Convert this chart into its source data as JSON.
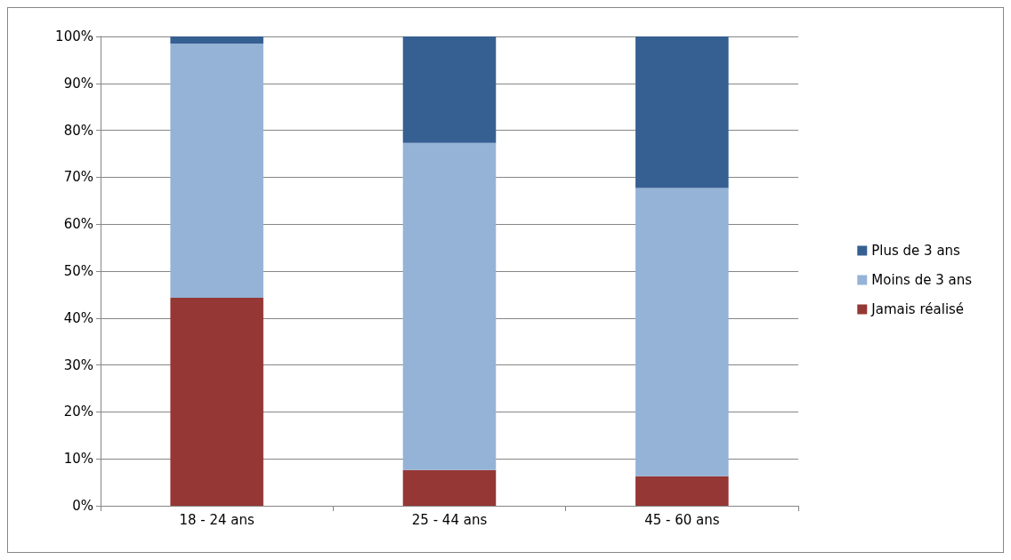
{
  "chart_data": {
    "type": "bar",
    "stacked": true,
    "categories": [
      "18 - 24 ans",
      "25 - 44 ans",
      "45 - 60 ans"
    ],
    "series": [
      {
        "name": "Jamais réalisé",
        "color": "#953735",
        "values": [
          44.3,
          7.6,
          6.3
        ]
      },
      {
        "name": "Moins de 3 ans",
        "color": "#95b3d7",
        "values": [
          54.2,
          69.7,
          61.4
        ]
      },
      {
        "name": "Plus de 3 ans",
        "color": "#366092",
        "values": [
          1.5,
          22.7,
          32.3
        ]
      }
    ],
    "ylim": [
      0,
      100
    ],
    "yticks": [
      {
        "value": 0,
        "label": "0%"
      },
      {
        "value": 10,
        "label": "10%"
      },
      {
        "value": 20,
        "label": "20%"
      },
      {
        "value": 30,
        "label": "30%"
      },
      {
        "value": 40,
        "label": "40%"
      },
      {
        "value": 50,
        "label": "50%"
      },
      {
        "value": 60,
        "label": "60%"
      },
      {
        "value": 70,
        "label": "70%"
      },
      {
        "value": 80,
        "label": "80%"
      },
      {
        "value": 90,
        "label": "90%"
      },
      {
        "value": 100,
        "label": "100%"
      }
    ],
    "grid": "y",
    "legend": "right"
  }
}
